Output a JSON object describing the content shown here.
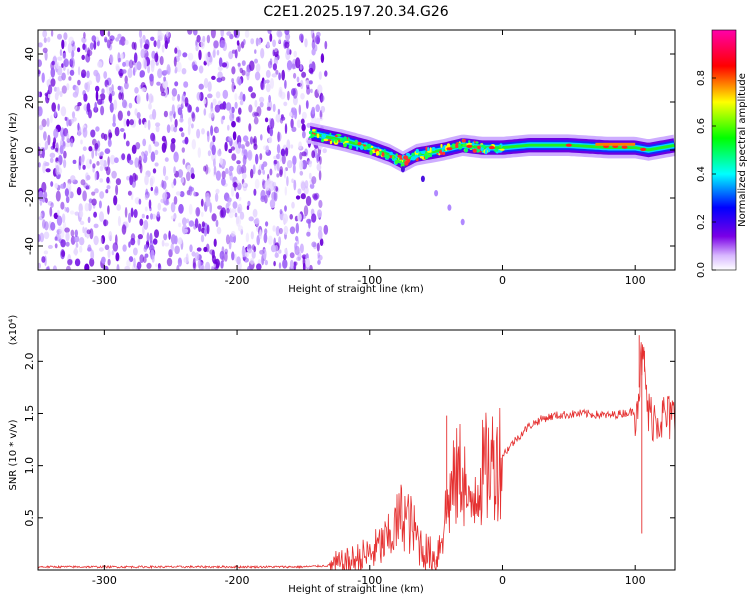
{
  "title": "C2E1.2025.197.20.34.G26",
  "chart_data": [
    {
      "type": "heatmap",
      "xlabel": "Height of straight line (km)",
      "ylabel": "Frequency (Hz)",
      "xlim": [
        -350,
        130
      ],
      "ylim": [
        -50,
        50
      ],
      "x_ticks": [
        -300,
        -200,
        -100,
        0,
        100
      ],
      "y_ticks": [
        -40,
        -20,
        0,
        20,
        40
      ],
      "colorbar": {
        "label": "Normalized spectral amplitude",
        "range": [
          0.0,
          1.0
        ],
        "ticks": [
          "0.0",
          "0.2",
          "0.4",
          "0.6",
          "0.8"
        ],
        "colormap": [
          "#ffffff",
          "#7a00e6",
          "#0000ff",
          "#00ffff",
          "#00ff00",
          "#ffff00",
          "#ff0000",
          "#ff00aa"
        ]
      },
      "noise_region": [
        -350,
        -145
      ],
      "ridge": {
        "x": [
          -145,
          -120,
          -100,
          -85,
          -75,
          -65,
          -55,
          -45,
          -30,
          -15,
          0,
          20,
          50,
          80,
          100,
          110,
          130
        ],
        "y": [
          7,
          4,
          1,
          -2,
          -5,
          -2,
          -1,
          0,
          2,
          1,
          1,
          2,
          2,
          1,
          1,
          0,
          2
        ]
      },
      "branch": {
        "x": [
          -75,
          -60,
          -50,
          -40,
          -30
        ],
        "y": [
          -8,
          -12,
          -18,
          -24,
          -30
        ]
      }
    },
    {
      "type": "line",
      "xlabel": "Height of straight line (km)",
      "ylabel": "SNR (10 * v/v)",
      "y_multiplier": "(x10⁴)",
      "xlim": [
        -350,
        130
      ],
      "ylim": [
        0,
        2.3
      ],
      "x_ticks": [
        -300,
        -200,
        -100,
        0,
        100
      ],
      "y_ticks": [
        "0.5",
        "1.0",
        "1.5",
        "2.0"
      ],
      "line_color": "#e53030",
      "points": {
        "x": [
          -350,
          -150,
          -120,
          -100,
          -85,
          -75,
          -70,
          -60,
          -50,
          -40,
          -30,
          -25,
          -20,
          -10,
          0,
          10,
          20,
          30,
          40,
          60,
          80,
          100,
          103,
          105,
          107,
          110,
          130
        ],
        "y": [
          0.03,
          0.03,
          0.05,
          0.15,
          0.3,
          0.55,
          0.45,
          0.2,
          0.1,
          0.7,
          1.0,
          0.5,
          0.85,
          1.0,
          1.1,
          1.25,
          1.38,
          1.45,
          1.48,
          1.5,
          1.48,
          1.52,
          1.75,
          2.05,
          1.9,
          1.48,
          1.45
        ]
      }
    }
  ]
}
